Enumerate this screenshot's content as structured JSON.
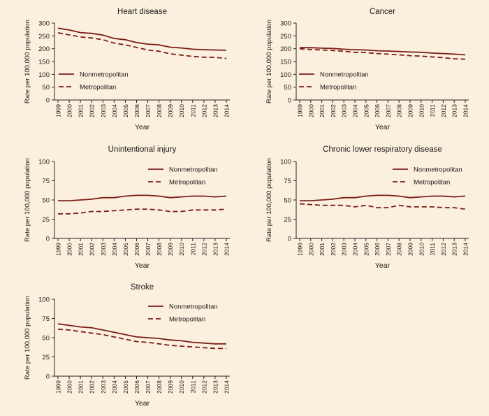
{
  "legend_labels": {
    "nonmetro": "Nonmetropolitan",
    "metro": "Metropolitan"
  },
  "colors": {
    "line": "#7a1d17",
    "axis": "#222222",
    "background": "#fbf0dd"
  },
  "chart_data": [
    {
      "type": "line",
      "title": "Heart disease",
      "xlabel": "Year",
      "ylabel": "Rate per 100,000 population",
      "x": [
        1999,
        2000,
        2001,
        2002,
        2003,
        2004,
        2005,
        2006,
        2007,
        2008,
        2009,
        2010,
        2011,
        2012,
        2013,
        2014
      ],
      "ylim": [
        0,
        300
      ],
      "yticks": [
        0,
        50,
        100,
        150,
        200,
        250,
        300
      ],
      "legend_position": "middle-left",
      "series": [
        {
          "name": "Nonmetropolitan",
          "style": "solid",
          "values": [
            280,
            273,
            263,
            260,
            253,
            240,
            235,
            224,
            218,
            215,
            206,
            203,
            198,
            196,
            195,
            194
          ]
        },
        {
          "name": "Metropolitan",
          "style": "dashed",
          "values": [
            262,
            254,
            246,
            242,
            235,
            222,
            215,
            205,
            195,
            190,
            180,
            175,
            170,
            167,
            166,
            162
          ]
        }
      ]
    },
    {
      "type": "line",
      "title": "Cancer",
      "xlabel": "Year",
      "ylabel": "Rate per 100,000 population",
      "x": [
        1999,
        2000,
        2001,
        2002,
        2003,
        2004,
        2005,
        2006,
        2007,
        2008,
        2009,
        2010,
        2011,
        2012,
        2013,
        2014
      ],
      "ylim": [
        0,
        300
      ],
      "yticks": [
        0,
        50,
        100,
        150,
        200,
        250,
        300
      ],
      "legend_position": "lower-left",
      "series": [
        {
          "name": "Nonmetropolitan",
          "style": "solid",
          "values": [
            204,
            204,
            202,
            201,
            198,
            196,
            195,
            192,
            191,
            189,
            187,
            186,
            183,
            181,
            179,
            176
          ]
        },
        {
          "name": "Metropolitan",
          "style": "dashed",
          "values": [
            200,
            197,
            195,
            193,
            190,
            186,
            185,
            181,
            179,
            176,
            173,
            171,
            168,
            165,
            161,
            159
          ]
        }
      ]
    },
    {
      "type": "line",
      "title": "Unintentional injury",
      "xlabel": "Year",
      "ylabel": "Rate per 100,000 population",
      "x": [
        1999,
        2000,
        2001,
        2002,
        2003,
        2004,
        2005,
        2006,
        2007,
        2008,
        2009,
        2010,
        2011,
        2012,
        2013,
        2014
      ],
      "ylim": [
        0,
        100
      ],
      "yticks": [
        0,
        25,
        50,
        75,
        100
      ],
      "legend_position": "upper-right",
      "series": [
        {
          "name": "Nonmetropolitan",
          "style": "solid",
          "values": [
            49,
            49,
            50,
            51,
            53,
            53,
            55,
            56,
            56,
            55,
            53,
            54,
            55,
            55,
            54,
            55
          ]
        },
        {
          "name": "Metropolitan",
          "style": "dashed",
          "values": [
            32,
            32,
            33,
            35,
            35,
            36,
            37,
            38,
            38,
            37,
            35,
            35,
            37,
            37,
            37,
            38
          ]
        }
      ]
    },
    {
      "type": "line",
      "title": "Chronic lower respiratory disease",
      "xlabel": "Year",
      "ylabel": "Rate per 100,000 population",
      "x": [
        1999,
        2000,
        2001,
        2002,
        2003,
        2004,
        2005,
        2006,
        2007,
        2008,
        2009,
        2010,
        2011,
        2012,
        2013,
        2014
      ],
      "ylim": [
        0,
        100
      ],
      "yticks": [
        0,
        25,
        50,
        75,
        100
      ],
      "legend_position": "upper-right",
      "series": [
        {
          "name": "Nonmetropolitan",
          "style": "solid",
          "values": [
            49,
            49,
            50,
            51,
            53,
            53,
            55,
            56,
            56,
            55,
            53,
            54,
            55,
            55,
            54,
            55
          ]
        },
        {
          "name": "Metropolitan",
          "style": "dashed",
          "values": [
            45,
            44,
            43,
            43,
            43,
            41,
            43,
            40,
            40,
            43,
            41,
            41,
            41,
            40,
            40,
            38
          ]
        }
      ]
    },
    {
      "type": "line",
      "title": "Stroke",
      "xlabel": "Year",
      "ylabel": "Rate per 100,000 population",
      "x": [
        1999,
        2000,
        2001,
        2002,
        2003,
        2004,
        2005,
        2006,
        2007,
        2008,
        2009,
        2010,
        2011,
        2012,
        2013,
        2014
      ],
      "ylim": [
        0,
        100
      ],
      "yticks": [
        0,
        25,
        50,
        75,
        100
      ],
      "legend_position": "upper-right",
      "series": [
        {
          "name": "Nonmetropolitan",
          "style": "solid",
          "values": [
            68,
            66,
            64,
            63,
            60,
            57,
            54,
            51,
            50,
            49,
            47,
            46,
            44,
            43,
            42,
            42
          ]
        },
        {
          "name": "Metropolitan",
          "style": "dashed",
          "values": [
            61,
            60,
            58,
            56,
            54,
            51,
            48,
            45,
            44,
            42,
            40,
            39,
            38,
            37,
            36,
            36
          ]
        }
      ]
    }
  ]
}
